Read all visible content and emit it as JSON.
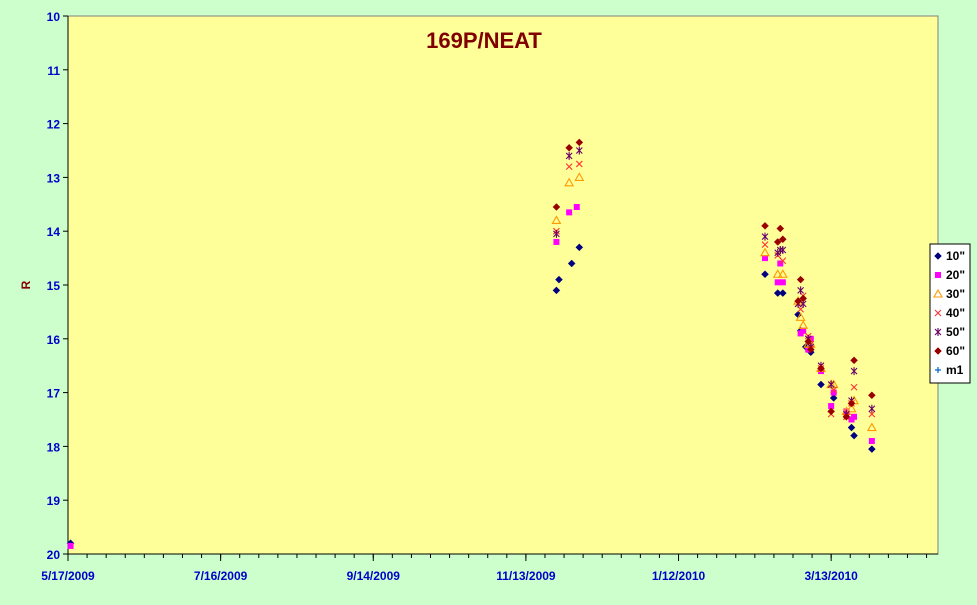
{
  "chart_data": {
    "type": "scatter",
    "title": "169P/NEAT",
    "xlabel": "",
    "ylabel": "R",
    "x_is_date": true,
    "xlim": [
      "2009-05-17",
      "2010-04-24"
    ],
    "ylim": [
      10,
      20
    ],
    "y_inverted": true,
    "x_ticks": [
      "5/17/2009",
      "7/16/2009",
      "9/14/2009",
      "11/13/2009",
      "1/12/2010",
      "3/13/2010"
    ],
    "y_ticks": [
      10,
      11,
      12,
      13,
      14,
      15,
      16,
      17,
      18,
      19,
      20
    ],
    "grid": false,
    "legend_position": "right",
    "colors": {
      "plot_background": "#ffff99",
      "page_background": "#ccffcc",
      "axis_text": "#0000cc",
      "title": "#800000"
    },
    "series": [
      {
        "name": "10\"",
        "marker": "diamond",
        "color": "#000080",
        "points": [
          [
            "2009-05-18",
            19.8
          ],
          [
            "2009-11-25",
            15.1
          ],
          [
            "2009-11-26",
            14.9
          ],
          [
            "2009-12-01",
            14.6
          ],
          [
            "2009-12-04",
            14.3
          ],
          [
            "2010-02-15",
            14.8
          ],
          [
            "2010-02-20",
            15.15
          ],
          [
            "2010-02-22",
            15.15
          ],
          [
            "2010-02-28",
            15.55
          ],
          [
            "2010-03-01",
            15.85
          ],
          [
            "2010-03-03",
            16.15
          ],
          [
            "2010-03-05",
            16.25
          ],
          [
            "2010-03-09",
            16.85
          ],
          [
            "2010-03-14",
            17.1
          ],
          [
            "2010-03-19",
            17.4
          ],
          [
            "2010-03-21",
            17.65
          ],
          [
            "2010-03-22",
            17.8
          ],
          [
            "2010-03-29",
            18.05
          ]
        ]
      },
      {
        "name": "20\"",
        "marker": "square",
        "color": "#ff00ff",
        "points": [
          [
            "2009-05-18",
            19.85
          ],
          [
            "2009-11-25",
            14.2
          ],
          [
            "2009-11-30",
            13.65
          ],
          [
            "2009-12-03",
            13.55
          ],
          [
            "2010-02-15",
            14.5
          ],
          [
            "2010-02-20",
            14.95
          ],
          [
            "2010-02-21",
            14.6
          ],
          [
            "2010-02-22",
            14.95
          ],
          [
            "2010-03-01",
            15.9
          ],
          [
            "2010-03-02",
            15.85
          ],
          [
            "2010-03-04",
            16.2
          ],
          [
            "2010-03-05",
            16.0
          ],
          [
            "2010-03-09",
            16.6
          ],
          [
            "2010-03-13",
            17.25
          ],
          [
            "2010-03-14",
            17.0
          ],
          [
            "2010-03-19",
            17.35
          ],
          [
            "2010-03-21",
            17.5
          ],
          [
            "2010-03-22",
            17.45
          ],
          [
            "2010-03-29",
            17.9
          ]
        ]
      },
      {
        "name": "30\"",
        "marker": "triangle",
        "color": "#ff9900",
        "points": [
          [
            "2009-11-25",
            13.8
          ],
          [
            "2009-11-30",
            13.1
          ],
          [
            "2009-12-04",
            13.0
          ],
          [
            "2010-02-15",
            14.4
          ],
          [
            "2010-02-20",
            14.8
          ],
          [
            "2010-02-22",
            14.8
          ],
          [
            "2010-02-28",
            15.3
          ],
          [
            "2010-03-01",
            15.6
          ],
          [
            "2010-03-02",
            15.75
          ],
          [
            "2010-03-04",
            16.1
          ],
          [
            "2010-03-05",
            16.1
          ],
          [
            "2010-03-09",
            16.55
          ],
          [
            "2010-03-13",
            16.85
          ],
          [
            "2010-03-14",
            16.85
          ],
          [
            "2010-03-19",
            17.35
          ],
          [
            "2010-03-21",
            17.3
          ],
          [
            "2010-03-22",
            17.15
          ],
          [
            "2010-03-29",
            17.65
          ]
        ]
      },
      {
        "name": "40\"",
        "marker": "x",
        "color": "#ff3333",
        "points": [
          [
            "2009-11-25",
            14.0
          ],
          [
            "2009-11-30",
            12.8
          ],
          [
            "2009-12-04",
            12.75
          ],
          [
            "2010-02-15",
            14.25
          ],
          [
            "2010-02-20",
            14.45
          ],
          [
            "2010-02-22",
            14.55
          ],
          [
            "2010-02-28",
            15.35
          ],
          [
            "2010-03-01",
            15.45
          ],
          [
            "2010-03-02",
            15.2
          ],
          [
            "2010-03-04",
            15.95
          ],
          [
            "2010-03-05",
            16.1
          ],
          [
            "2010-03-09",
            16.55
          ],
          [
            "2010-03-13",
            17.4
          ],
          [
            "2010-03-14",
            16.95
          ],
          [
            "2010-03-19",
            17.45
          ],
          [
            "2010-03-21",
            17.2
          ],
          [
            "2010-03-22",
            16.9
          ],
          [
            "2010-03-29",
            17.4
          ]
        ]
      },
      {
        "name": "50\"",
        "marker": "star",
        "color": "#660066",
        "points": [
          [
            "2009-11-25",
            14.05
          ],
          [
            "2009-11-30",
            12.6
          ],
          [
            "2009-12-04",
            12.5
          ],
          [
            "2010-02-15",
            14.1
          ],
          [
            "2010-02-20",
            14.4
          ],
          [
            "2010-02-21",
            14.35
          ],
          [
            "2010-02-22",
            14.35
          ],
          [
            "2010-02-28",
            15.35
          ],
          [
            "2010-03-01",
            15.1
          ],
          [
            "2010-03-02",
            15.35
          ],
          [
            "2010-03-04",
            16.0
          ],
          [
            "2010-03-05",
            16.15
          ],
          [
            "2010-03-09",
            16.5
          ],
          [
            "2010-03-13",
            16.85
          ],
          [
            "2010-03-19",
            17.4
          ],
          [
            "2010-03-21",
            17.15
          ],
          [
            "2010-03-22",
            16.6
          ],
          [
            "2010-03-29",
            17.3
          ]
        ]
      },
      {
        "name": "60\"",
        "marker": "diamond",
        "color": "#990000",
        "points": [
          [
            "2009-11-25",
            13.55
          ],
          [
            "2009-11-30",
            12.45
          ],
          [
            "2009-12-04",
            12.35
          ],
          [
            "2010-02-15",
            13.9
          ],
          [
            "2010-02-20",
            14.2
          ],
          [
            "2010-02-21",
            13.95
          ],
          [
            "2010-02-22",
            14.15
          ],
          [
            "2010-02-28",
            15.3
          ],
          [
            "2010-03-01",
            14.9
          ],
          [
            "2010-03-02",
            15.25
          ],
          [
            "2010-03-04",
            16.05
          ],
          [
            "2010-03-05",
            16.2
          ],
          [
            "2010-03-09",
            16.55
          ],
          [
            "2010-03-13",
            17.35
          ],
          [
            "2010-03-19",
            17.45
          ],
          [
            "2010-03-21",
            17.2
          ],
          [
            "2010-03-22",
            16.4
          ],
          [
            "2010-03-29",
            17.05
          ]
        ]
      },
      {
        "name": "m1",
        "marker": "plus",
        "color": "#0066cc",
        "points": []
      }
    ]
  }
}
